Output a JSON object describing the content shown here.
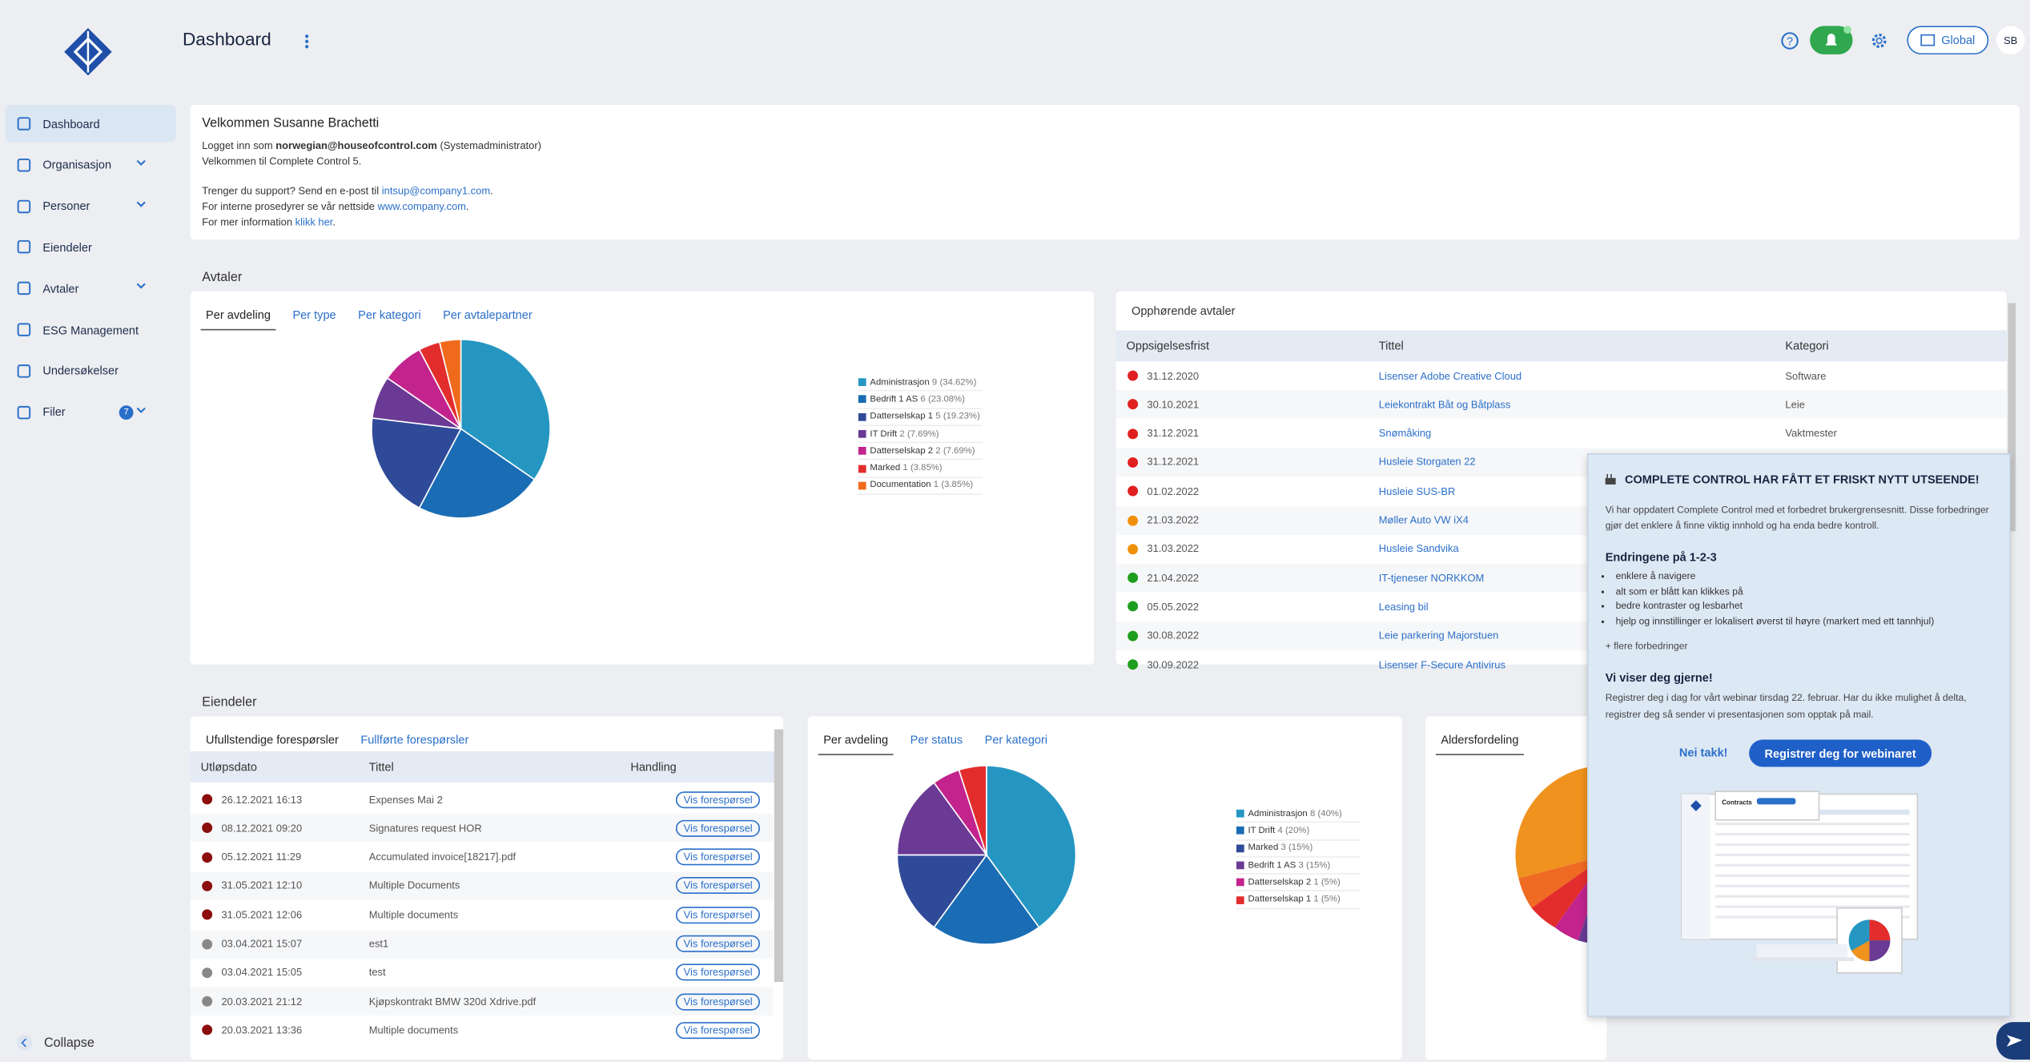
{
  "header": {
    "title": "Dashboard",
    "scope": "Global",
    "initials": "SB"
  },
  "sidebar": {
    "items": [
      "Dashboard",
      "Organisasjon",
      "Personer",
      "Eiendeler",
      "Avtaler",
      "ESG Management",
      "Undersøkelser",
      "Filer"
    ],
    "files_badge": "7",
    "collapse": "Collapse"
  },
  "welcome": {
    "title": "Velkommen Susanne Brachetti",
    "login_prefix": "Logget inn som ",
    "login_email": "norwegian@houseofcontrol.com",
    "login_role": " (Systemadministrator)",
    "line2": "Velkommen til Complete Control 5.",
    "support_prefix": "Trenger du support? Send en e-post til ",
    "support_email": "intsup@company1.com",
    "support_suffix": ".",
    "intranet_prefix": "For interne prosedyrer se vår nettside ",
    "intranet_link": "www.company.com",
    "intranet_suffix": ".",
    "info_prefix": "For mer information ",
    "info_link": "klikk her",
    "info_suffix": "."
  },
  "avtaler": {
    "heading": "Avtaler",
    "tabs": [
      "Per avdeling",
      "Per type",
      "Per kategori",
      "Per avtalepartner"
    ],
    "pie": {
      "type": "pie",
      "categories": [
        "Administrasjon",
        "Bedrift 1 AS",
        "Datterselskap 1",
        "IT Drift",
        "Datterselskap 2",
        "Marked",
        "Documentation"
      ],
      "values": [
        9,
        6,
        5,
        2,
        2,
        1,
        1
      ],
      "share_labels": [
        "(34.62%)",
        "(23.08%)",
        "(19.23%)",
        "(7.69%)",
        "(7.69%)",
        "(3.85%)",
        "(3.85%)"
      ],
      "colors": [
        "#2596c2",
        "#1a6db4",
        "#2f4a98",
        "#6a3a95",
        "#c2238c",
        "#e32d2d",
        "#f06a1c"
      ]
    }
  },
  "ending": {
    "title": "Opphørende avtaler",
    "columns": [
      "Oppsigelsesfrist",
      "Tittel",
      "Kategori"
    ],
    "rows": [
      {
        "date": "31.12.2020",
        "title": "Lisenser Adobe Creative Cloud",
        "category": "Software",
        "status": "#e02020"
      },
      {
        "date": "30.10.2021",
        "title": "Leiekontrakt Båt og Båtplass",
        "category": "Leie",
        "status": "#e02020"
      },
      {
        "date": "31.12.2021",
        "title": "Snømåking",
        "category": "Vaktmester",
        "status": "#e02020"
      },
      {
        "date": "31.12.2021",
        "title": "Husleie Storgaten 22",
        "status": "#e02020"
      },
      {
        "date": "01.02.2022",
        "title": "Husleie SUS-BR",
        "status": "#e02020"
      },
      {
        "date": "21.03.2022",
        "title": "Møller Auto VW iX4",
        "status": "#f0900a"
      },
      {
        "date": "31.03.2022",
        "title": "Husleie Sandvika",
        "status": "#f0900a"
      },
      {
        "date": "21.04.2022",
        "title": "IT-tjeneser NORKKOM",
        "status": "#1e9e1e"
      },
      {
        "date": "05.05.2022",
        "title": "Leasing bil",
        "status": "#1e9e1e"
      },
      {
        "date": "30.08.2022",
        "title": "Leie parkering Majorstuen",
        "status": "#1e9e1e"
      },
      {
        "date": "30.09.2022",
        "title": "Lisenser F-Secure Antivirus",
        "status": "#1e9e1e"
      }
    ]
  },
  "eiendeler": {
    "heading": "Eiendeler",
    "tabs": [
      "Ufullstendige forespørsler",
      "Fullførte forespørsler"
    ],
    "columns": [
      "Utløpsdato",
      "Tittel",
      "Handling"
    ],
    "action_label": "Vis forespørsel",
    "rows": [
      {
        "date": "26.12.2021 16:13",
        "title": "Expenses Mai 2",
        "status": "#8b0d0d"
      },
      {
        "date": "08.12.2021 09:20",
        "title": "Signatures request HOR",
        "status": "#8b0d0d"
      },
      {
        "date": "05.12.2021 11:29",
        "title": "Accumulated invoice[18217].pdf",
        "status": "#8b0d0d"
      },
      {
        "date": "31.05.2021 12:10",
        "title": "Multiple Documents",
        "status": "#8b0d0d"
      },
      {
        "date": "31.05.2021 12:06",
        "title": "Multiple documents",
        "status": "#8b0d0d"
      },
      {
        "date": "03.04.2021 15:07",
        "title": "est1",
        "status": "#888888"
      },
      {
        "date": "03.04.2021 15:05",
        "title": "test",
        "status": "#888888"
      },
      {
        "date": "20.03.2021 21:12",
        "title": "Kjøpskontrakt BMW 320d Xdrive.pdf",
        "status": "#888888"
      },
      {
        "date": "20.03.2021 13:36",
        "title": "Multiple documents",
        "status": "#8b0d0d"
      }
    ],
    "pie_tabs": [
      "Per avdeling",
      "Per status",
      "Per kategori"
    ],
    "pie": {
      "type": "pie",
      "categories": [
        "Administrasjon",
        "IT Drift",
        "Marked",
        "Bedrift 1 AS",
        "Datterselskap 2",
        "Datterselskap 1"
      ],
      "values": [
        8,
        4,
        3,
        3,
        1,
        1
      ],
      "share_labels": [
        "(40%)",
        "(20%)",
        "(15%)",
        "(15%)",
        "(5%)",
        "(5%)"
      ],
      "colors": [
        "#2596c2",
        "#1a6db4",
        "#2f4a98",
        "#6a3a95",
        "#c2238c",
        "#e32d2d"
      ]
    },
    "age_tab": "Aldersfordeling"
  },
  "popup": {
    "title": "COMPLETE CONTROL HAR FÅTT ET FRISKT NYTT UTSEENDE!",
    "intro": "Vi har oppdatert Complete Control  med et forbedret brukergrensesnitt. Disse forbedringer gjør det enklere å finne viktig innhold og ha enda bedre kontroll.",
    "changes_title": "Endringene på 1-2-3",
    "changes": [
      "enklere å navigere",
      "alt som er blått kan klikkes på",
      "bedre kontraster og lesbarhet",
      "hjelp og innstillinger er lokalisert øverst til høyre (markert med ett tannhjul)"
    ],
    "more": "+ flere forbedringer",
    "show_title": "Vi viser deg gjerne!",
    "show_text": "Registrer deg i dag for vårt webinar tirsdag 22. februar. Har du ikke mulighet å delta, registrer deg så sender vi presentasjonen som opptak på mail.",
    "decline": "Nei takk!",
    "register": "Registrer deg for webinaret",
    "preview_title": "Contracts"
  }
}
